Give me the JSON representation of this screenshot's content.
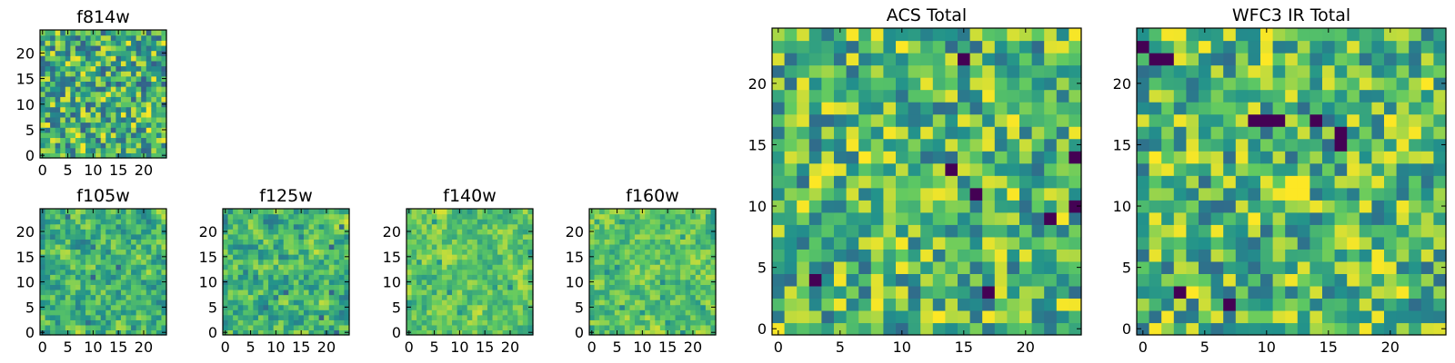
{
  "figure": {
    "colormap": "viridis",
    "colormap_stops": [
      "#440154",
      "#3b528b",
      "#21918c",
      "#5ec962",
      "#fde725"
    ]
  },
  "chart_data": [
    {
      "type": "heatmap",
      "title": "f814w",
      "grid_size": 25,
      "x_ticks": [
        0,
        5,
        10,
        15,
        20
      ],
      "y_ticks": [
        0,
        5,
        10,
        15,
        20
      ],
      "xlim": [
        -0.5,
        24.5
      ],
      "ylim": [
        -0.5,
        24.5
      ],
      "seed": 11,
      "noise": "pixel-scale",
      "range": [
        0.3,
        1.0
      ],
      "hotspots": []
    },
    {
      "type": "heatmap",
      "title": "f105w",
      "grid_size": 25,
      "x_ticks": [
        0,
        5,
        10,
        15,
        20
      ],
      "y_ticks": [
        0,
        5,
        10,
        15,
        20
      ],
      "xlim": [
        -0.5,
        24.5
      ],
      "ylim": [
        -0.5,
        24.5
      ],
      "seed": 23,
      "noise": "smooth",
      "range": [
        0.3,
        1.0
      ],
      "hotspots": []
    },
    {
      "type": "heatmap",
      "title": "f125w",
      "grid_size": 25,
      "x_ticks": [
        0,
        5,
        10,
        15,
        20
      ],
      "y_ticks": [
        0,
        5,
        10,
        15,
        20
      ],
      "xlim": [
        -0.5,
        24.5
      ],
      "ylim": [
        -0.5,
        24.5
      ],
      "seed": 37,
      "noise": "smooth",
      "range": [
        0.3,
        1.0
      ],
      "hotspots": []
    },
    {
      "type": "heatmap",
      "title": "f140w",
      "grid_size": 25,
      "x_ticks": [
        0,
        5,
        10,
        15,
        20
      ],
      "y_ticks": [
        0,
        5,
        10,
        15,
        20
      ],
      "xlim": [
        -0.5,
        24.5
      ],
      "ylim": [
        -0.5,
        24.5
      ],
      "seed": 41,
      "noise": "smooth",
      "range": [
        0.45,
        1.0
      ],
      "hotspots": []
    },
    {
      "type": "heatmap",
      "title": "f160w",
      "grid_size": 25,
      "x_ticks": [
        0,
        5,
        10,
        15,
        20
      ],
      "y_ticks": [
        0,
        5,
        10,
        15,
        20
      ],
      "xlim": [
        -0.5,
        24.5
      ],
      "ylim": [
        -0.5,
        24.5
      ],
      "seed": 53,
      "noise": "smooth",
      "range": [
        0.45,
        1.0
      ],
      "hotspots": []
    },
    {
      "type": "heatmap",
      "title": "ACS Total",
      "grid_size": 25,
      "x_ticks": [
        0,
        5,
        10,
        15,
        20
      ],
      "y_ticks": [
        0,
        5,
        10,
        15,
        20
      ],
      "xlim": [
        -0.5,
        24.5
      ],
      "ylim": [
        -0.5,
        24.5
      ],
      "seed": 67,
      "noise": "pixel",
      "range": [
        0.35,
        1.0
      ],
      "hotspots": [
        {
          "x": 14,
          "y": 13,
          "v": 0.0
        },
        {
          "x": 24,
          "y": 14,
          "v": 0.0
        },
        {
          "x": 16,
          "y": 11,
          "v": 0.0
        },
        {
          "x": 22,
          "y": 9,
          "v": 0.0
        },
        {
          "x": 24,
          "y": 10,
          "v": 0.0
        },
        {
          "x": 3,
          "y": 4,
          "v": 0.0
        },
        {
          "x": 17,
          "y": 3,
          "v": 0.0
        },
        {
          "x": 15,
          "y": 22,
          "v": 0.0
        }
      ]
    },
    {
      "type": "heatmap",
      "title": "WFC3 IR Total",
      "grid_size": 25,
      "x_ticks": [
        0,
        5,
        10,
        15,
        20
      ],
      "y_ticks": [
        0,
        5,
        10,
        15,
        20
      ],
      "xlim": [
        -0.5,
        24.5
      ],
      "ylim": [
        -0.5,
        24.5
      ],
      "seed": 79,
      "noise": "pixel",
      "range": [
        0.35,
        1.0
      ],
      "hotspots": [
        {
          "x": 0,
          "y": 23,
          "v": 0.0
        },
        {
          "x": 1,
          "y": 22,
          "v": 0.0
        },
        {
          "x": 2,
          "y": 22,
          "v": 0.0
        },
        {
          "x": 9,
          "y": 17,
          "v": 0.0
        },
        {
          "x": 10,
          "y": 17,
          "v": 0.0
        },
        {
          "x": 11,
          "y": 17,
          "v": 0.0
        },
        {
          "x": 14,
          "y": 17,
          "v": 0.0
        },
        {
          "x": 16,
          "y": 16,
          "v": 0.0
        },
        {
          "x": 16,
          "y": 15,
          "v": 0.0
        },
        {
          "x": 3,
          "y": 3,
          "v": 0.0
        },
        {
          "x": 7,
          "y": 2,
          "v": 0.0
        },
        {
          "x": 12,
          "y": 12,
          "v": 1.0
        },
        {
          "x": 13,
          "y": 12,
          "v": 1.0
        },
        {
          "x": 12,
          "y": 11,
          "v": 1.0
        },
        {
          "x": 13,
          "y": 11,
          "v": 1.0
        },
        {
          "x": 20,
          "y": 17,
          "v": 1.0
        }
      ]
    }
  ]
}
